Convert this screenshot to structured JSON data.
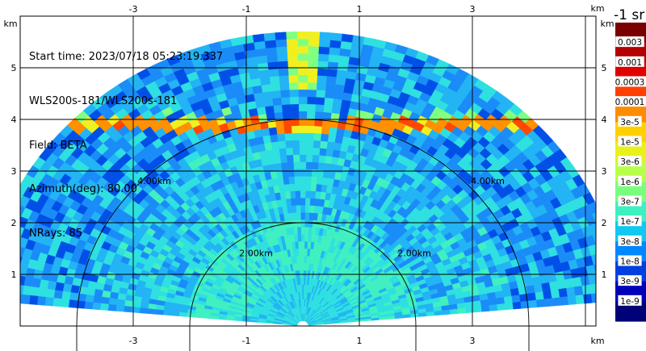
{
  "chart_data": {
    "type": "heatmap",
    "title_lines": [
      "Start time: 2023/07/18 05:23:19.337",
      "WLS200s-181/WLS200s-181",
      "Field: BETA",
      "Azimuth(deg): 80.00",
      "NRays: 85"
    ],
    "xlabel": "km",
    "ylabel": "km",
    "x_ticks": [
      "-3",
      "-1",
      "1",
      "3"
    ],
    "y_ticks": [
      "1",
      "2",
      "3",
      "4",
      "5"
    ],
    "xlim": [
      -4.9,
      4.5
    ],
    "ylim": [
      0,
      5.85
    ],
    "range_rings": [
      {
        "radius_km": 2,
        "label": "2.00km"
      },
      {
        "radius_km": 4,
        "label": "4.00km"
      }
    ],
    "rhi_sector": {
      "max_range_km": 5.6,
      "elevation_deg_start": 5,
      "elevation_deg_end": 175
    },
    "colorbar": {
      "title": "-1 sr",
      "labels": [
        "0.003",
        "0.001",
        "0.0003",
        "0.0001",
        "3e-5",
        "1e-5",
        "3e-6",
        "1e-6",
        "3e-7",
        "1e-7",
        "3e-8",
        "1e-8",
        "3e-9",
        "1e-9"
      ],
      "colors": [
        "#7a0000",
        "#b40000",
        "#e00000",
        "#ff4000",
        "#ff8c00",
        "#ffd000",
        "#eaf01a",
        "#b8ff4a",
        "#78ff7c",
        "#3cf0c0",
        "#10c8f0",
        "#0086ff",
        "#0040e0",
        "#0000b8",
        "#000078"
      ]
    },
    "field_description": {
      "background_level": "1e-7",
      "mid_field_level": "3e-8",
      "near_field_level": "1e-7",
      "enhanced_layer_height_km": 3.9,
      "enhanced_layer_level": "1e-5"
    }
  }
}
